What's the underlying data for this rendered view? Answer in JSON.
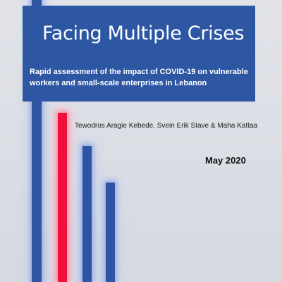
{
  "cover": {
    "title": "Facing Multiple Crises",
    "subtitle": "Rapid assessment of the impact of COVID-19 on vulnerable workers and small-scale enterprises in Lebanon",
    "authors": "Tewodros Aragie Kebede, Svein Erik Stave & Maha Kattaa",
    "date": "May 2020"
  },
  "colors": {
    "background": "#d9dce3",
    "banner": "#2e57a3",
    "bar_blue": "#2f54a0",
    "bar_red": "#f0103c",
    "title_text": "#ffffff",
    "body_text": "#1c1c1c"
  },
  "decoration": {
    "bars": [
      {
        "color": "blue",
        "glow": true
      },
      {
        "color": "red",
        "glow": true
      },
      {
        "color": "blue",
        "glow": true
      },
      {
        "color": "blue",
        "glow": true
      }
    ]
  }
}
